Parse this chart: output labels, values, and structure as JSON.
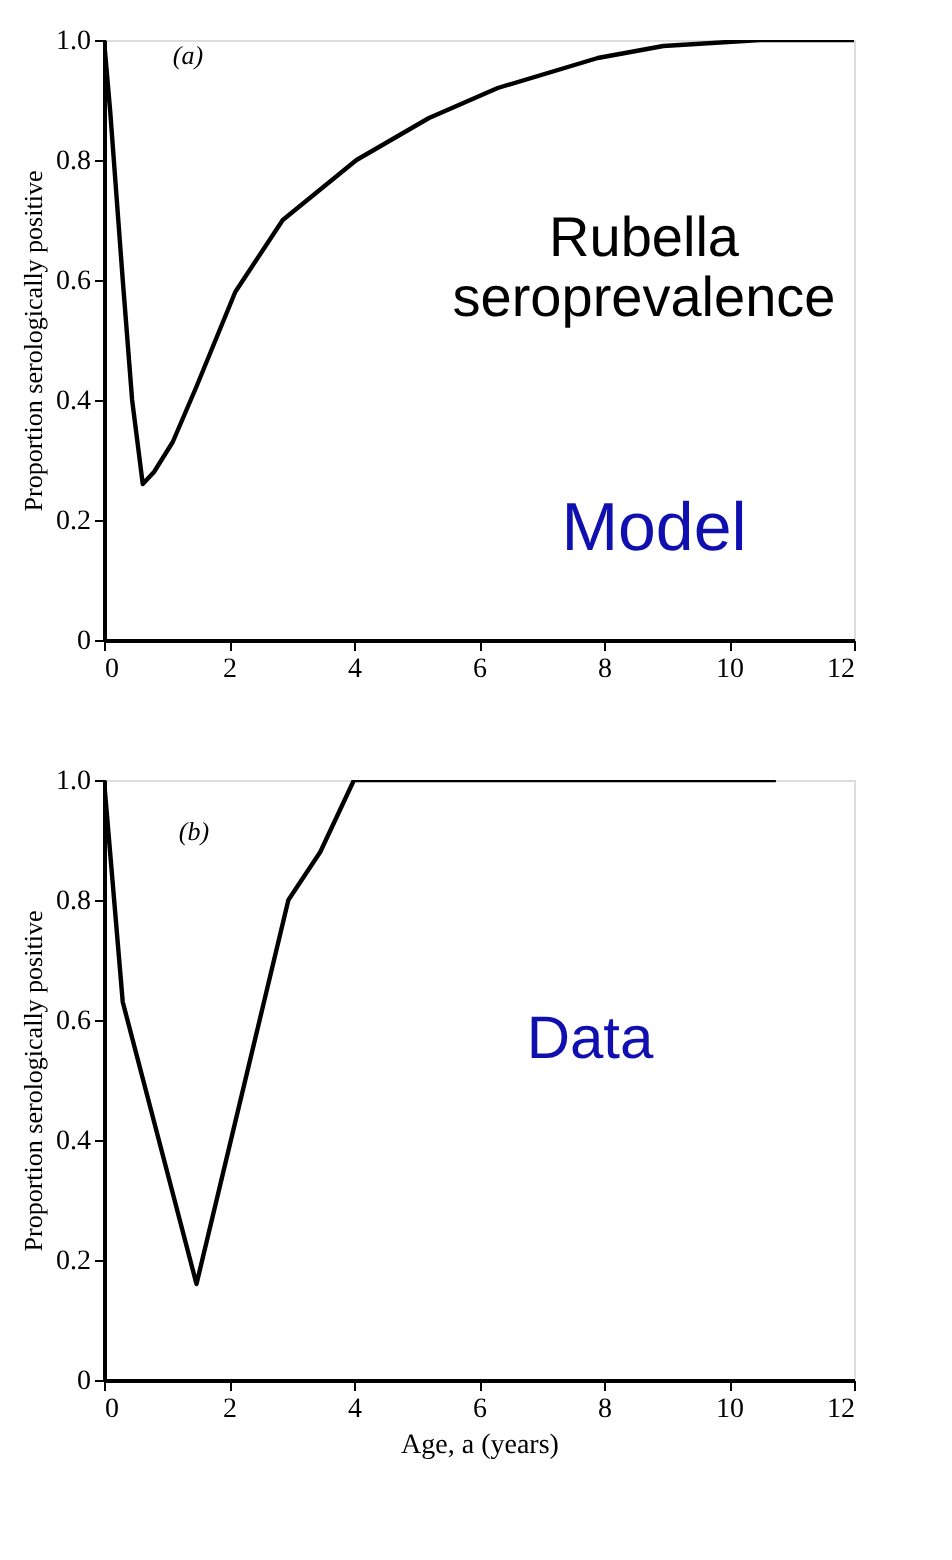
{
  "chart_data": [
    {
      "type": "line",
      "ylabel": "Proportion serologically positive",
      "annotations": [
        "(a)",
        "Rubella seroprevalence",
        "Model"
      ],
      "series": [
        {
          "color": "#000000",
          "x": [
            0,
            0.1,
            0.3,
            0.45,
            0.62,
            0.8,
            1.1,
            1.47,
            2.1,
            2.86,
            4.04,
            5.2,
            6.3,
            7.9,
            8.95,
            10.5,
            12
          ],
          "values": [
            1.0,
            0.88,
            0.6,
            0.4,
            0.26,
            0.28,
            0.33,
            0.42,
            0.58,
            0.7,
            0.8,
            0.87,
            0.92,
            0.97,
            0.99,
            1.0,
            1.0
          ]
        }
      ],
      "xlim": [
        0,
        12
      ],
      "xticks": [
        0,
        2,
        4,
        6,
        8,
        10,
        12
      ],
      "ylim": [
        0,
        1
      ],
      "yticks": [
        {
          "value": 0,
          "label": "0"
        },
        {
          "value": 0.2,
          "label": "0.2"
        },
        {
          "value": 0.4,
          "label": "0.4"
        },
        {
          "value": 0.6,
          "label": "0.6"
        },
        {
          "value": 0.8,
          "label": "0.8"
        },
        {
          "value": 1.0,
          "label": "1.0"
        }
      ],
      "grid": false,
      "line_style": "solid"
    },
    {
      "type": "line",
      "xlabel": "Age, a (years)",
      "ylabel": "Proportion serologically positive",
      "annotations": [
        "(b)",
        "Data"
      ],
      "series": [
        {
          "color": "#000000",
          "x": [
            0,
            0.3,
            1.48,
            2.95,
            3.46,
            4,
            10.75
          ],
          "values": [
            1.0,
            0.63,
            0.16,
            0.8,
            0.88,
            1.0,
            1.0
          ]
        }
      ],
      "xlim": [
        0,
        12
      ],
      "xticks": [
        0,
        2,
        4,
        6,
        8,
        10,
        12
      ],
      "ylim": [
        0,
        1
      ],
      "yticks": [
        {
          "value": 0,
          "label": "0"
        },
        {
          "value": 0.2,
          "label": "0.2"
        },
        {
          "value": 0.4,
          "label": "0.4"
        },
        {
          "value": 0.6,
          "label": "0.6"
        },
        {
          "value": 0.8,
          "label": "0.8"
        },
        {
          "value": 1.0,
          "label": "1.0"
        }
      ],
      "grid": false,
      "line_style": "solid"
    }
  ]
}
